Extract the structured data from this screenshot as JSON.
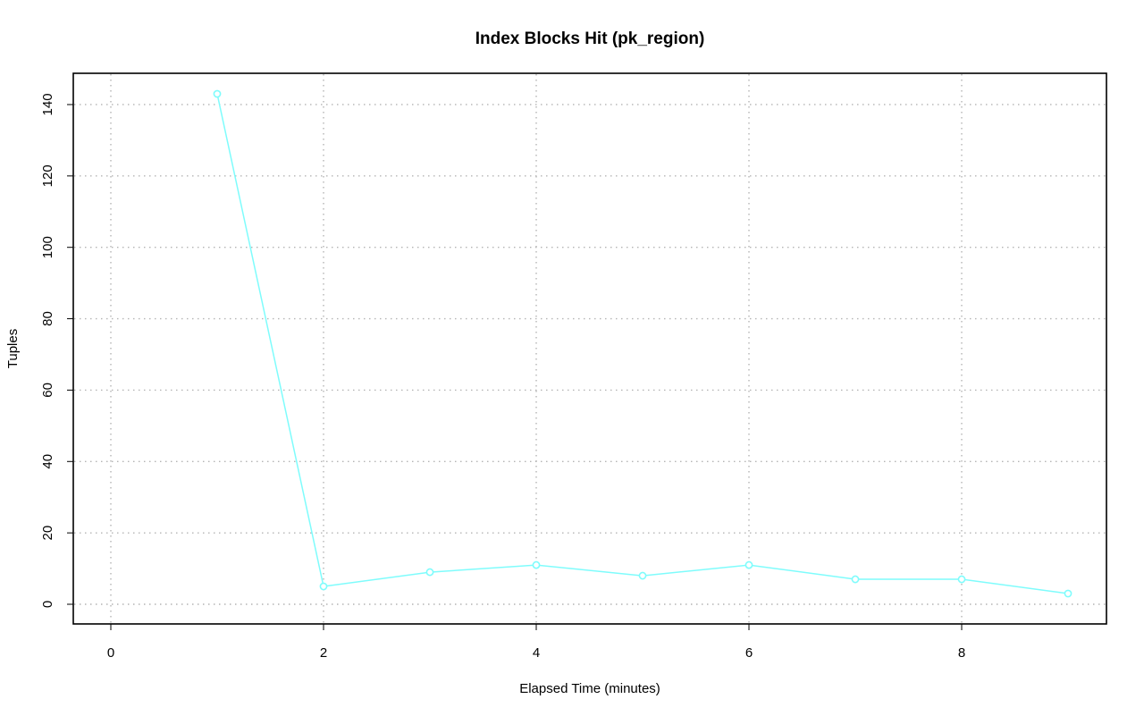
{
  "chart_data": {
    "type": "line",
    "title": "Index Blocks Hit (pk_region)",
    "xlabel": "Elapsed Time (minutes)",
    "ylabel": "Tuples",
    "xlim": [
      0,
      9
    ],
    "ylim": [
      0,
      143
    ],
    "x_ticks": [
      0,
      2,
      4,
      6,
      8
    ],
    "y_ticks": [
      0,
      20,
      40,
      60,
      80,
      100,
      120,
      140
    ],
    "grid": true,
    "legend": "none",
    "series": [
      {
        "color": "#7ffcfc",
        "marker": "open-circle",
        "x": [
          1,
          2,
          3,
          4,
          5,
          6,
          7,
          8,
          9
        ],
        "y": [
          143,
          5,
          9,
          11,
          8,
          11,
          7,
          7,
          3
        ]
      }
    ]
  }
}
